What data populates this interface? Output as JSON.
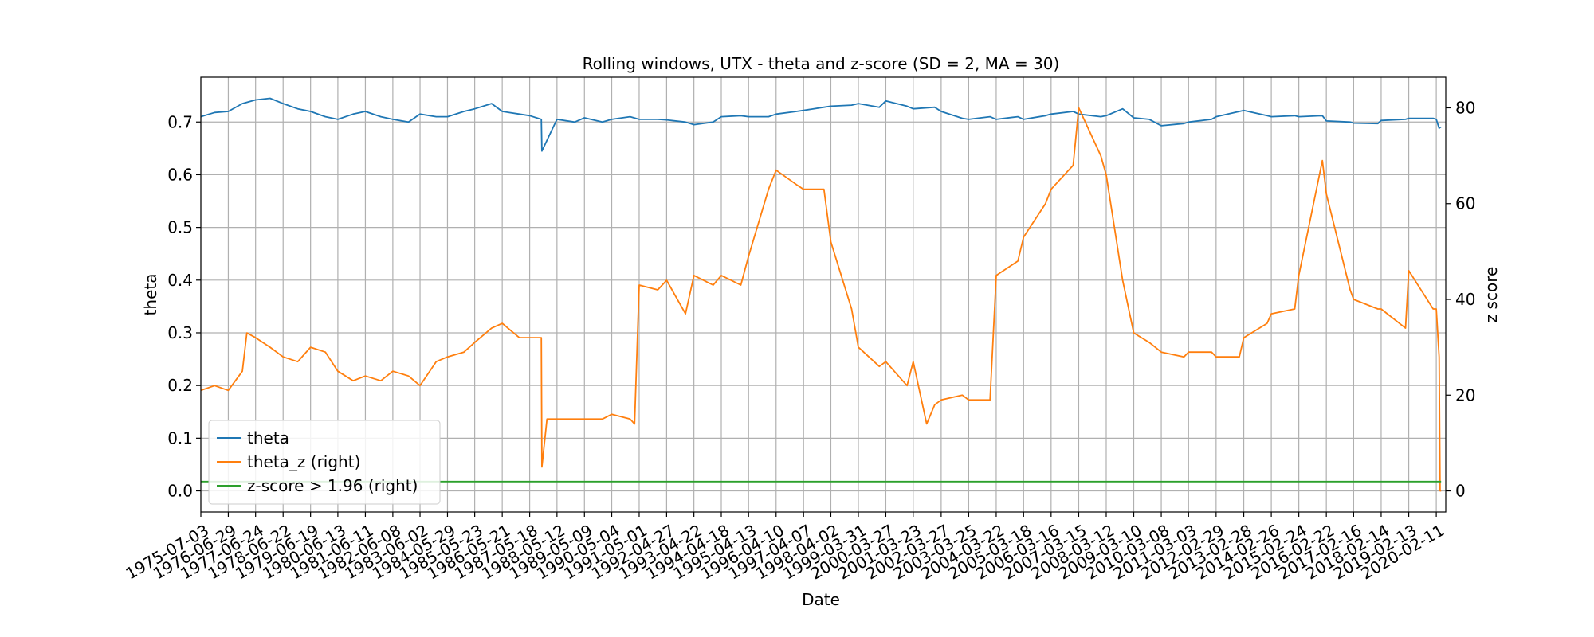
{
  "chart_data": {
    "type": "line",
    "title": "Rolling windows, UTX - theta and z-score (SD = 2, MA = 30)",
    "xlabel": "Date",
    "ylabel": "theta",
    "ylabel_right": "z score",
    "ylim": [
      -0.04,
      0.785
    ],
    "ylim_right": [
      -4.4,
      86.4
    ],
    "yticks": [
      0.0,
      0.1,
      0.2,
      0.3,
      0.4,
      0.5,
      0.6,
      0.7
    ],
    "ytick_labels": [
      "0.0",
      "0.1",
      "0.2",
      "0.3",
      "0.4",
      "0.5",
      "0.6",
      "0.7"
    ],
    "yticks_right": [
      0,
      20,
      40,
      60,
      80
    ],
    "ytick_labels_right": [
      "0",
      "20",
      "40",
      "60",
      "80"
    ],
    "xlim": [
      "1975-07-03",
      "2020-06-15"
    ],
    "xtick_labels": [
      "1975-07-03",
      "1976-06-29",
      "1977-06-24",
      "1978-06-22",
      "1979-06-19",
      "1980-06-13",
      "1981-06-11",
      "1982-06-08",
      "1983-06-02",
      "1984-05-29",
      "1985-05-23",
      "1986-05-21",
      "1987-05-18",
      "1988-05-12",
      "1989-05-09",
      "1990-05-04",
      "1991-05-01",
      "1992-04-27",
      "1993-04-22",
      "1994-04-18",
      "1995-04-13",
      "1996-04-10",
      "1997-04-07",
      "1998-04-02",
      "1999-03-31",
      "2000-03-27",
      "2001-03-23",
      "2002-03-27",
      "2003-03-25",
      "2004-03-22",
      "2005-03-18",
      "2006-03-16",
      "2007-03-15",
      "2008-03-12",
      "2009-03-10",
      "2010-03-08",
      "2011-03-03",
      "2012-02-29",
      "2013-02-28",
      "2014-02-26",
      "2015-02-24",
      "2016-02-22",
      "2017-02-16",
      "2018-02-14",
      "2019-02-13",
      "2020-02-11"
    ],
    "grid": true,
    "legend_position": "lower-left",
    "series": [
      {
        "name": "theta",
        "axis": "left",
        "color": "#1f77b4",
        "x": [
          "1975-07-03",
          "1976-01-01",
          "1976-06-29",
          "1977-01-01",
          "1977-06-24",
          "1978-01-01",
          "1978-06-22",
          "1979-01-01",
          "1979-06-19",
          "1980-01-01",
          "1980-06-13",
          "1981-01-01",
          "1981-06-11",
          "1982-01-01",
          "1982-06-08",
          "1983-01-01",
          "1983-06-02",
          "1984-01-01",
          "1984-05-29",
          "1985-01-01",
          "1985-05-23",
          "1986-01-01",
          "1986-05-21",
          "1987-01-01",
          "1987-05-18",
          "1987-10-19",
          "1987-10-26",
          "1988-05-12",
          "1989-01-01",
          "1989-05-09",
          "1990-01-01",
          "1990-05-04",
          "1991-01-01",
          "1991-05-01",
          "1992-01-01",
          "1992-04-27",
          "1993-01-01",
          "1993-04-22",
          "1994-01-01",
          "1994-04-18",
          "1995-01-01",
          "1995-04-13",
          "1996-01-01",
          "1996-04-10",
          "1997-01-01",
          "1997-04-07",
          "1998-01-01",
          "1998-04-02",
          "1999-01-01",
          "1999-03-31",
          "2000-01-01",
          "2000-03-27",
          "2001-01-01",
          "2001-03-23",
          "2002-01-01",
          "2002-03-27",
          "2003-01-01",
          "2003-03-25",
          "2004-01-01",
          "2004-03-22",
          "2005-01-01",
          "2005-03-18",
          "2006-01-01",
          "2006-03-16",
          "2007-01-01",
          "2007-03-15",
          "2008-01-01",
          "2008-03-12",
          "2008-10-15",
          "2009-03-10",
          "2009-10-01",
          "2010-03-08",
          "2011-01-01",
          "2011-03-03",
          "2012-01-01",
          "2012-02-29",
          "2013-01-01",
          "2013-02-28",
          "2014-01-01",
          "2014-02-26",
          "2015-01-01",
          "2015-02-24",
          "2016-01-01",
          "2016-02-22",
          "2017-01-01",
          "2017-02-16",
          "2018-01-01",
          "2018-02-14",
          "2019-01-01",
          "2019-02-13",
          "2020-01-01",
          "2020-02-11",
          "2020-03-20",
          "2020-04-01",
          "2020-04-15"
        ],
        "values": [
          0.71,
          0.718,
          0.72,
          0.735,
          0.742,
          0.745,
          0.735,
          0.725,
          0.72,
          0.71,
          0.705,
          0.715,
          0.72,
          0.71,
          0.705,
          0.7,
          0.715,
          0.71,
          0.71,
          0.72,
          0.725,
          0.735,
          0.72,
          0.715,
          0.712,
          0.705,
          0.645,
          0.705,
          0.7,
          0.708,
          0.7,
          0.705,
          0.71,
          0.705,
          0.705,
          0.704,
          0.7,
          0.695,
          0.7,
          0.71,
          0.712,
          0.71,
          0.71,
          0.715,
          0.72,
          0.722,
          0.728,
          0.73,
          0.732,
          0.735,
          0.728,
          0.74,
          0.73,
          0.725,
          0.728,
          0.72,
          0.707,
          0.705,
          0.71,
          0.705,
          0.71,
          0.705,
          0.712,
          0.715,
          0.72,
          0.715,
          0.71,
          0.712,
          0.725,
          0.708,
          0.705,
          0.693,
          0.697,
          0.7,
          0.705,
          0.71,
          0.72,
          0.722,
          0.712,
          0.71,
          0.712,
          0.71,
          0.712,
          0.702,
          0.7,
          0.698,
          0.697,
          0.703,
          0.705,
          0.707,
          0.707,
          0.705,
          0.688,
          0.69,
          0.69
        ]
      },
      {
        "name": "theta_z (right)",
        "axis": "right",
        "color": "#ff7f0e",
        "x": [
          "1975-07-03",
          "1976-01-01",
          "1976-06-29",
          "1977-01-01",
          "1977-03-01",
          "1977-06-24",
          "1978-01-01",
          "1978-06-22",
          "1979-01-01",
          "1979-06-19",
          "1980-01-01",
          "1980-06-13",
          "1981-01-01",
          "1981-06-11",
          "1982-01-01",
          "1982-06-08",
          "1983-01-01",
          "1983-06-02",
          "1984-01-01",
          "1984-05-29",
          "1985-01-01",
          "1985-05-23",
          "1986-01-01",
          "1986-05-21",
          "1987-01-01",
          "1987-05-18",
          "1987-10-19",
          "1987-10-26",
          "1988-01-01",
          "1988-05-12",
          "1989-01-01",
          "1989-05-09",
          "1990-01-01",
          "1990-05-04",
          "1991-01-01",
          "1991-03-01",
          "1991-05-01",
          "1992-01-01",
          "1992-04-27",
          "1993-01-01",
          "1993-04-22",
          "1994-01-01",
          "1994-04-18",
          "1995-01-01",
          "1995-04-13",
          "1996-01-01",
          "1996-04-10",
          "1997-01-01",
          "1997-04-07",
          "1998-01-01",
          "1998-04-02",
          "1999-01-01",
          "1999-03-31",
          "2000-01-01",
          "2000-03-27",
          "2001-01-01",
          "2001-03-23",
          "2001-09-17",
          "2002-01-01",
          "2002-03-27",
          "2003-01-01",
          "2003-03-25",
          "2004-01-01",
          "2004-03-22",
          "2005-01-01",
          "2005-03-18",
          "2006-01-01",
          "2006-03-16",
          "2007-01-01",
          "2007-03-15",
          "2008-01-01",
          "2008-03-12",
          "2008-10-15",
          "2009-03-10",
          "2009-10-01",
          "2010-03-08",
          "2011-01-01",
          "2011-03-03",
          "2012-01-01",
          "2012-02-29",
          "2013-01-01",
          "2013-02-28",
          "2014-01-01",
          "2014-02-26",
          "2015-01-01",
          "2015-02-24",
          "2016-01-01",
          "2016-02-22",
          "2017-01-01",
          "2017-02-16",
          "2018-01-01",
          "2018-02-14",
          "2019-01-01",
          "2019-02-13",
          "2020-01-01",
          "2020-02-11",
          "2020-03-20",
          "2020-04-01",
          "2020-04-15"
        ],
        "values": [
          21,
          22,
          21,
          25,
          33,
          32,
          30,
          28,
          27,
          30,
          29,
          25,
          23,
          24,
          23,
          25,
          24,
          22,
          27,
          28,
          29,
          31,
          34,
          35,
          32,
          32,
          32,
          5,
          15,
          15,
          15,
          15,
          15,
          16,
          15,
          14,
          43,
          42,
          44,
          37,
          45,
          43,
          45,
          43,
          49,
          63,
          67,
          64,
          63,
          63,
          52,
          38,
          30,
          26,
          27,
          22,
          27,
          14,
          18,
          19,
          20,
          19,
          19,
          45,
          48,
          53,
          60,
          63,
          68,
          80,
          70,
          66,
          44,
          33,
          31,
          29,
          28,
          29,
          29,
          28,
          28,
          32,
          35,
          37,
          38,
          45,
          69,
          62,
          42,
          40,
          38,
          38,
          34,
          46,
          38,
          38,
          28,
          0,
          0
        ]
      },
      {
        "name": "z-score > 1.96 (right)",
        "axis": "right",
        "color": "#2ca02c",
        "x": [
          "1975-07-03",
          "2020-04-15"
        ],
        "values": [
          1.96,
          1.96
        ]
      }
    ]
  }
}
